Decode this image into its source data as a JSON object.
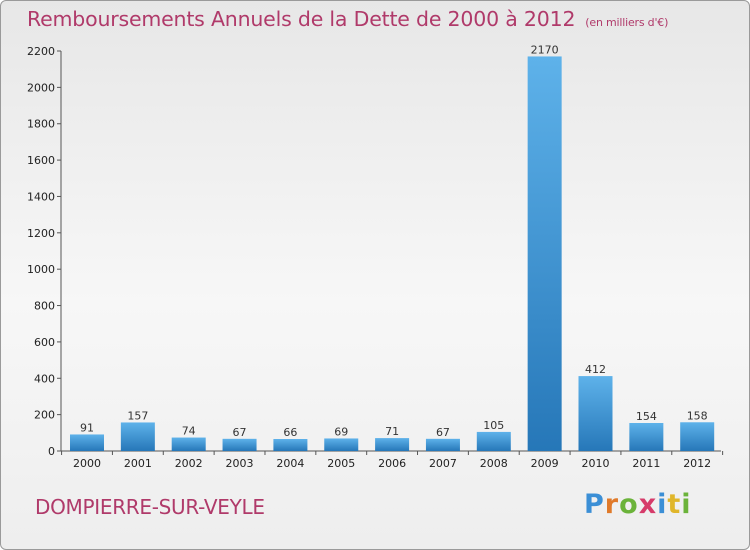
{
  "header": {
    "title": "Remboursements Annuels de la Dette de 2000 à 2012",
    "subtitle": "(en milliers d'€)"
  },
  "footer": {
    "commune": "DOMPIERRE-SUR-VEYLE",
    "logo": [
      "P",
      "r",
      "o",
      "x",
      "i",
      "t",
      "i"
    ]
  },
  "colors": {
    "title": "#b03a6a",
    "bar_light": "#5aaee8",
    "bar_dark": "#2a7bbd"
  },
  "chart_data": {
    "type": "bar",
    "title": "Remboursements Annuels de la Dette de 2000 à 2012",
    "xlabel": "",
    "ylabel": "",
    "categories": [
      "2000",
      "2001",
      "2002",
      "2003",
      "2004",
      "2005",
      "2006",
      "2007",
      "2008",
      "2009",
      "2010",
      "2011",
      "2012"
    ],
    "values": [
      91,
      157,
      74,
      67,
      66,
      69,
      71,
      67,
      105,
      2170,
      412,
      154,
      158
    ],
    "ylim": [
      0,
      2200
    ],
    "yticks": [
      0,
      200,
      400,
      600,
      800,
      1000,
      1200,
      1400,
      1600,
      1800,
      2000,
      2200
    ],
    "grid": false
  }
}
